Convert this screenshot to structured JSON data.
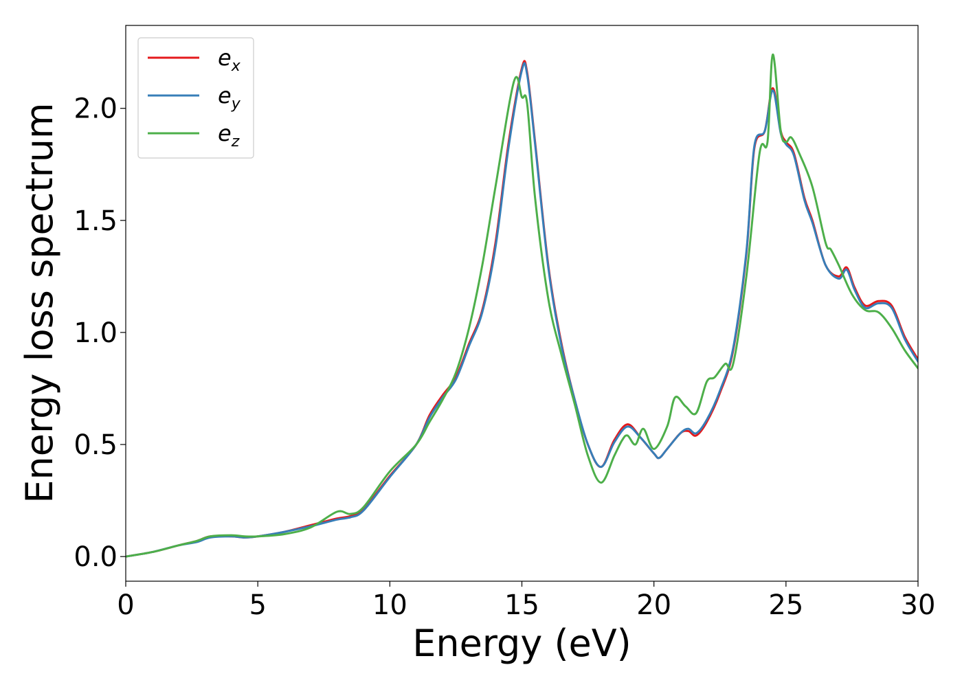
{
  "chart_data": {
    "type": "line",
    "title": "",
    "xlabel": "Energy (eV)",
    "ylabel": "Energy loss spectrum",
    "xlim": [
      0,
      30
    ],
    "ylim": [
      -0.11,
      2.37
    ],
    "xticks": [
      0,
      5,
      10,
      15,
      20,
      25,
      30
    ],
    "xtick_labels": [
      "0",
      "5",
      "10",
      "15",
      "20",
      "25",
      "30"
    ],
    "yticks": [
      0.0,
      0.5,
      1.0,
      1.5,
      2.0
    ],
    "ytick_labels": [
      "0.0",
      "0.5",
      "1.0",
      "1.5",
      "2.0"
    ],
    "grid": false,
    "legend_position": "top-left",
    "series": [
      {
        "name": "e",
        "subscript": "x",
        "color": "#e41a1c",
        "x": [
          0,
          1,
          2,
          2.7,
          3.2,
          4,
          4.5,
          5,
          6,
          7,
          8,
          8.5,
          9,
          10,
          11,
          11.5,
          12,
          12.5,
          13,
          13.5,
          14,
          14.5,
          15,
          15.2,
          15.5,
          16,
          16.5,
          17,
          17.5,
          18,
          18.5,
          19,
          19.5,
          20,
          20.2,
          20.5,
          21,
          21.3,
          21.6,
          22,
          22.5,
          23,
          23.5,
          23.8,
          24.2,
          24.5,
          24.8,
          25,
          25.3,
          25.7,
          26,
          26.5,
          27,
          27.3,
          27.6,
          28,
          28.5,
          29,
          29.5,
          30
        ],
        "y": [
          0.0,
          0.02,
          0.05,
          0.07,
          0.09,
          0.09,
          0.085,
          0.09,
          0.11,
          0.14,
          0.17,
          0.18,
          0.21,
          0.36,
          0.5,
          0.63,
          0.72,
          0.8,
          0.95,
          1.1,
          1.4,
          1.85,
          2.18,
          2.16,
          1.85,
          1.3,
          0.95,
          0.7,
          0.5,
          0.4,
          0.52,
          0.59,
          0.53,
          0.46,
          0.44,
          0.48,
          0.55,
          0.56,
          0.54,
          0.6,
          0.73,
          0.92,
          1.35,
          1.82,
          1.9,
          2.09,
          1.9,
          1.85,
          1.8,
          1.6,
          1.5,
          1.3,
          1.25,
          1.29,
          1.2,
          1.12,
          1.14,
          1.12,
          0.98,
          0.88
        ]
      },
      {
        "name": "e",
        "subscript": "y",
        "color": "#377eb8",
        "x": [
          0,
          1,
          2,
          2.7,
          3.2,
          4,
          4.5,
          5,
          6,
          7,
          8,
          8.5,
          9,
          10,
          11,
          11.5,
          12,
          12.5,
          13,
          13.5,
          14,
          14.5,
          15,
          15.2,
          15.5,
          16,
          16.5,
          17,
          17.5,
          18,
          18.5,
          19,
          19.5,
          20,
          20.2,
          20.5,
          21,
          21.3,
          21.6,
          22,
          22.5,
          23,
          23.5,
          23.8,
          24.2,
          24.5,
          24.8,
          25,
          25.3,
          25.7,
          26,
          26.5,
          27,
          27.3,
          27.6,
          28,
          28.5,
          29,
          29.5,
          30
        ],
        "y": [
          0.0,
          0.02,
          0.05,
          0.065,
          0.085,
          0.09,
          0.085,
          0.09,
          0.11,
          0.135,
          0.165,
          0.175,
          0.205,
          0.355,
          0.5,
          0.62,
          0.71,
          0.79,
          0.94,
          1.09,
          1.38,
          1.83,
          2.17,
          2.15,
          1.84,
          1.29,
          0.94,
          0.7,
          0.5,
          0.4,
          0.51,
          0.58,
          0.53,
          0.46,
          0.44,
          0.48,
          0.55,
          0.57,
          0.55,
          0.61,
          0.74,
          0.93,
          1.36,
          1.83,
          1.9,
          2.08,
          1.89,
          1.84,
          1.79,
          1.59,
          1.49,
          1.3,
          1.24,
          1.28,
          1.19,
          1.11,
          1.13,
          1.11,
          0.97,
          0.87
        ]
      },
      {
        "name": "e",
        "subscript": "z",
        "color": "#4daf4a",
        "x": [
          0,
          1,
          2,
          2.7,
          3.2,
          4,
          4.5,
          5,
          6,
          7,
          8,
          8.5,
          9,
          10,
          11,
          11.5,
          12,
          12.5,
          13,
          13.5,
          14,
          14.7,
          15,
          15.2,
          15.5,
          16,
          16.5,
          17,
          17.5,
          18,
          18.5,
          18.8,
          19,
          19.3,
          19.6,
          20,
          20.5,
          20.8,
          21.2,
          21.6,
          22,
          22.3,
          22.7,
          23,
          23.5,
          24,
          24.3,
          24.5,
          24.8,
          25,
          25.2,
          25.5,
          26,
          26.5,
          26.7,
          27,
          27.5,
          28,
          28.5,
          29,
          29.5,
          30
        ],
        "y": [
          0.0,
          0.02,
          0.05,
          0.07,
          0.09,
          0.095,
          0.09,
          0.09,
          0.1,
          0.13,
          0.2,
          0.19,
          0.22,
          0.38,
          0.5,
          0.6,
          0.7,
          0.82,
          1.02,
          1.3,
          1.65,
          2.12,
          2.05,
          2.02,
          1.6,
          1.15,
          0.9,
          0.68,
          0.45,
          0.33,
          0.45,
          0.52,
          0.54,
          0.5,
          0.57,
          0.48,
          0.58,
          0.71,
          0.67,
          0.64,
          0.78,
          0.8,
          0.86,
          0.86,
          1.25,
          1.8,
          1.85,
          2.24,
          1.9,
          1.85,
          1.87,
          1.8,
          1.65,
          1.4,
          1.37,
          1.3,
          1.17,
          1.1,
          1.09,
          1.02,
          0.92,
          0.84
        ]
      }
    ]
  }
}
